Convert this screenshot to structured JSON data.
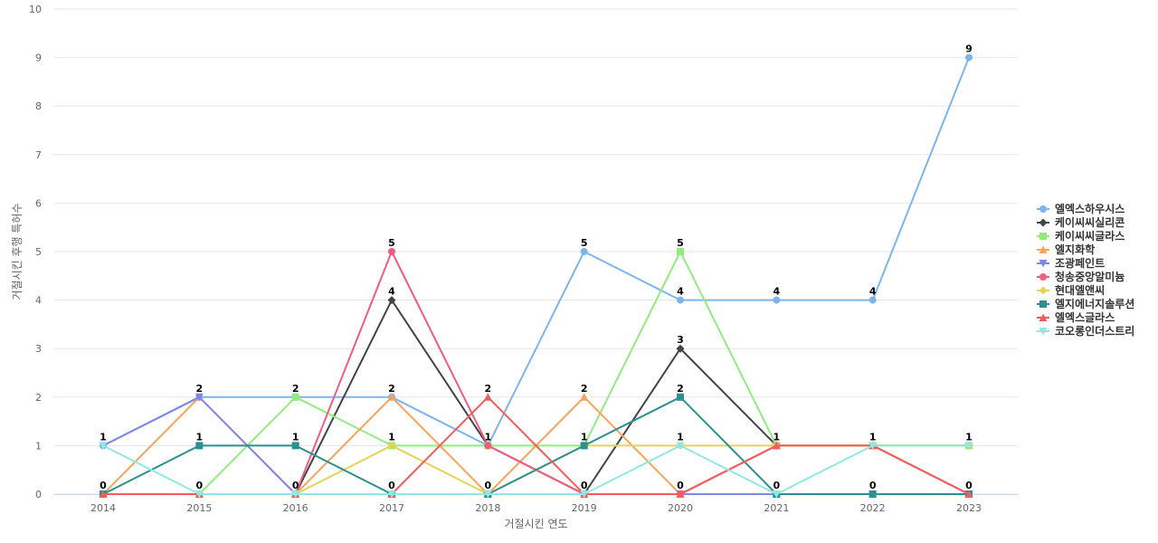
{
  "chart_data": {
    "type": "line",
    "title": "",
    "xlabel": "거절시킨 연도",
    "ylabel": "거절시킨 후행 특허수",
    "ylim": [
      0,
      10
    ],
    "yticks": [
      0,
      1,
      2,
      3,
      4,
      5,
      6,
      7,
      8,
      9,
      10
    ],
    "x": [
      "2014",
      "2015",
      "2016",
      "2017",
      "2018",
      "2019",
      "2020",
      "2021",
      "2022",
      "2023"
    ],
    "legend_position": "right",
    "grid": true,
    "series": [
      {
        "name": "엘엑스하우시스",
        "color": "#7cb5ec",
        "marker": "circle",
        "values": [
          1,
          2,
          2,
          2,
          1,
          5,
          4,
          4,
          4,
          9
        ]
      },
      {
        "name": "케이씨씨실리콘",
        "color": "#434348",
        "marker": "diamond",
        "values": [
          0,
          0,
          0,
          4,
          1,
          0,
          3,
          1,
          1,
          1
        ]
      },
      {
        "name": "케이씨씨글라스",
        "color": "#90ed7d",
        "marker": "square",
        "values": [
          0,
          0,
          2,
          1,
          1,
          1,
          5,
          1,
          1,
          1
        ]
      },
      {
        "name": "엘지화학",
        "color": "#f7a35c",
        "marker": "triangle",
        "values": [
          0,
          2,
          0,
          2,
          0,
          2,
          0,
          1,
          1,
          0
        ]
      },
      {
        "name": "조광페인트",
        "color": "#8085e9",
        "marker": "triangle-down",
        "values": [
          1,
          2,
          0,
          0,
          0,
          0,
          0,
          0,
          0,
          0
        ]
      },
      {
        "name": "청송중앙알미늄",
        "color": "#f15c80",
        "marker": "circle",
        "values": [
          0,
          0,
          0,
          5,
          1,
          0,
          0,
          1,
          1,
          0
        ]
      },
      {
        "name": "현대엘앤씨",
        "color": "#e4d354",
        "marker": "diamond",
        "values": [
          0,
          0,
          0,
          1,
          0,
          1,
          1,
          1,
          1,
          1
        ]
      },
      {
        "name": "엘지에너지솔루션",
        "color": "#2b908f",
        "marker": "square",
        "values": [
          0,
          1,
          1,
          0,
          0,
          1,
          2,
          0,
          0,
          0
        ]
      },
      {
        "name": "엘엑스글라스",
        "color": "#f45b5b",
        "marker": "triangle",
        "values": [
          0,
          0,
          0,
          0,
          2,
          0,
          0,
          1,
          1,
          0
        ]
      },
      {
        "name": "코오롱인더스트리",
        "color": "#91e8e1",
        "marker": "triangle-down",
        "values": [
          1,
          0,
          0,
          0,
          0,
          0,
          1,
          0,
          1,
          1
        ]
      }
    ],
    "data_labels": [
      {
        "x": "2014",
        "text": "1",
        "value": 1
      },
      {
        "x": "2014",
        "text": "0",
        "value": 0
      },
      {
        "x": "2015",
        "text": "2",
        "value": 2
      },
      {
        "x": "2015",
        "text": "1",
        "value": 1
      },
      {
        "x": "2015",
        "text": "0",
        "value": 0
      },
      {
        "x": "2016",
        "text": "2",
        "value": 2
      },
      {
        "x": "2016",
        "text": "1",
        "value": 1
      },
      {
        "x": "2016",
        "text": "0",
        "value": 0
      },
      {
        "x": "2017",
        "text": "5",
        "value": 5
      },
      {
        "x": "2017",
        "text": "4",
        "value": 4
      },
      {
        "x": "2017",
        "text": "2",
        "value": 2
      },
      {
        "x": "2017",
        "text": "1",
        "value": 1
      },
      {
        "x": "2017",
        "text": "0",
        "value": 0
      },
      {
        "x": "2018",
        "text": "2",
        "value": 2
      },
      {
        "x": "2018",
        "text": "1",
        "value": 1
      },
      {
        "x": "2018",
        "text": "0",
        "value": 0
      },
      {
        "x": "2019",
        "text": "5",
        "value": 5
      },
      {
        "x": "2019",
        "text": "2",
        "value": 2
      },
      {
        "x": "2019",
        "text": "1",
        "value": 1
      },
      {
        "x": "2019",
        "text": "0",
        "value": 0
      },
      {
        "x": "2020",
        "text": "5",
        "value": 5
      },
      {
        "x": "2020",
        "text": "4",
        "value": 4
      },
      {
        "x": "2020",
        "text": "3",
        "value": 3
      },
      {
        "x": "2020",
        "text": "2",
        "value": 2
      },
      {
        "x": "2020",
        "text": "1",
        "value": 1
      },
      {
        "x": "2020",
        "text": "0",
        "value": 0
      },
      {
        "x": "2021",
        "text": "4",
        "value": 4
      },
      {
        "x": "2021",
        "text": "1",
        "value": 1
      },
      {
        "x": "2021",
        "text": "0",
        "value": 0
      },
      {
        "x": "2022",
        "text": "4",
        "value": 4
      },
      {
        "x": "2022",
        "text": "1",
        "value": 1
      },
      {
        "x": "2022",
        "text": "0",
        "value": 0
      },
      {
        "x": "2023",
        "text": "9",
        "value": 9
      },
      {
        "x": "2023",
        "text": "1",
        "value": 1
      },
      {
        "x": "2023",
        "text": "0",
        "value": 0
      }
    ]
  }
}
